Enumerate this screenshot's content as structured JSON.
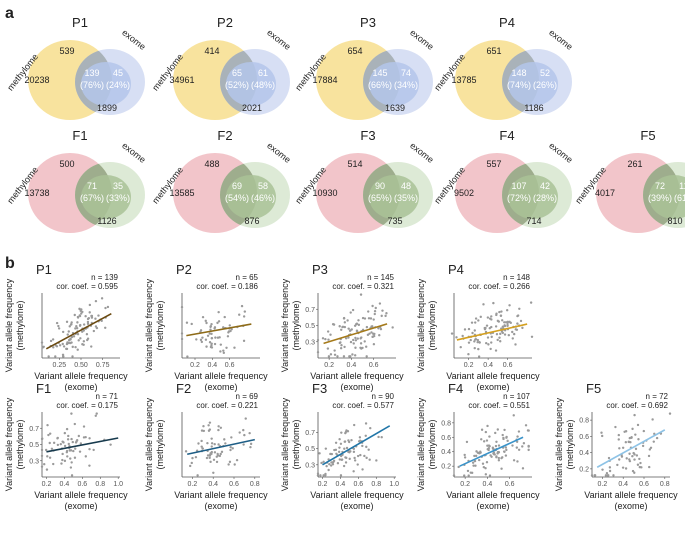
{
  "panel_a": {
    "label": "a",
    "set_left": "methylome",
    "set_right": "exome",
    "venns": [
      {
        "title": "P1",
        "left_only": "20238",
        "top_only": "539",
        "ov_a": "139",
        "ov_a_pct": "(76%)",
        "ov_b": "45",
        "ov_b_pct": "(24%)",
        "right_only": "1899",
        "left_color": "#f5d97e",
        "right_color": "#c9d4f0",
        "overlap_color": "#9aa6ad",
        "inner_color": "#b4c6ea"
      },
      {
        "title": "P2",
        "left_only": "34961",
        "top_only": "414",
        "ov_a": "65",
        "ov_a_pct": "(52%)",
        "ov_b": "61",
        "ov_b_pct": "(48%)",
        "right_only": "2021",
        "left_color": "#f5d97e",
        "right_color": "#c9d4f0",
        "overlap_color": "#9aa6ad",
        "inner_color": "#b4c6ea"
      },
      {
        "title": "P3",
        "left_only": "17884",
        "top_only": "654",
        "ov_a": "145",
        "ov_a_pct": "(66%)",
        "ov_b": "74",
        "ov_b_pct": "(34%)",
        "right_only": "1639",
        "left_color": "#f5d97e",
        "right_color": "#c9d4f0",
        "overlap_color": "#9aa6ad",
        "inner_color": "#b4c6ea"
      },
      {
        "title": "P4",
        "left_only": "13785",
        "top_only": "651",
        "ov_a": "148",
        "ov_a_pct": "(74%)",
        "ov_b": "52",
        "ov_b_pct": "(26%)",
        "right_only": "1186",
        "left_color": "#f5d97e",
        "right_color": "#c9d4f0",
        "overlap_color": "#9aa6ad",
        "inner_color": "#b4c6ea"
      },
      {
        "title": "F1",
        "left_only": "13738",
        "top_only": "500",
        "ov_a": "71",
        "ov_a_pct": "(67%)",
        "ov_b": "35",
        "ov_b_pct": "(33%)",
        "right_only": "1126",
        "left_color": "#eeb2b8",
        "right_color": "#d1e3c8",
        "overlap_color": "#8a9e78",
        "inner_color": "#a9c296"
      },
      {
        "title": "F2",
        "left_only": "13585",
        "top_only": "488",
        "ov_a": "69",
        "ov_a_pct": "(54%)",
        "ov_b": "58",
        "ov_b_pct": "(46%)",
        "right_only": "876",
        "left_color": "#eeb2b8",
        "right_color": "#d1e3c8",
        "overlap_color": "#8a9e78",
        "inner_color": "#a9c296"
      },
      {
        "title": "F3",
        "left_only": "10930",
        "top_only": "514",
        "ov_a": "90",
        "ov_a_pct": "(65%)",
        "ov_b": "48",
        "ov_b_pct": "(35%)",
        "right_only": "735",
        "left_color": "#eeb2b8",
        "right_color": "#d1e3c8",
        "overlap_color": "#8a9e78",
        "inner_color": "#a9c296"
      },
      {
        "title": "F4",
        "left_only": "9502",
        "top_only": "557",
        "ov_a": "107",
        "ov_a_pct": "(72%)",
        "ov_b": "42",
        "ov_b_pct": "(28%)",
        "right_only": "714",
        "left_color": "#eeb2b8",
        "right_color": "#d1e3c8",
        "overlap_color": "#8a9e78",
        "inner_color": "#a9c296"
      },
      {
        "title": "F5",
        "left_only": "4017",
        "top_only": "261",
        "ov_a": "72",
        "ov_a_pct": "(39%)",
        "ov_b": "111",
        "ov_b_pct": "(61%)",
        "right_only": "810",
        "left_color": "#eeb2b8",
        "right_color": "#d1e3c8",
        "overlap_color": "#8a9e78",
        "inner_color": "#a9c296"
      }
    ]
  },
  "panel_b": {
    "label": "b",
    "ylabel_line1": "Variant allele frequency",
    "ylabel_line2": "(methylome)",
    "xlabel_line1": "Variant allele frequency",
    "xlabel_line2": "(exome)",
    "point_color": "#9a9a9a"
  },
  "chart_data": [
    {
      "type": "scatter",
      "title": "P1",
      "n_text": "n = 139",
      "cor_text": "cor. coef. = 0.595",
      "n": 139,
      "r": 0.595,
      "xlim": [
        0.05,
        0.95
      ],
      "ylim": [
        0.1,
        0.95
      ],
      "xticks": [
        "0.25",
        "0.50",
        "0.75"
      ],
      "xtick_vals": [
        0.25,
        0.5,
        0.75
      ],
      "yticks": [],
      "ytick_vals": [],
      "line_color": "#6b4a10",
      "fit": [
        [
          0.1,
          0.22
        ],
        [
          0.85,
          0.68
        ]
      ],
      "xlabel": "Variant allele frequency (exome)",
      "ylabel": "Variant allele frequency (methylome)",
      "seed": 11
    },
    {
      "type": "scatter",
      "title": "P2",
      "n_text": "n = 65",
      "cor_text": "cor. coef. = 0.186",
      "n": 65,
      "r": 0.186,
      "xlim": [
        0.05,
        0.95
      ],
      "ylim": [
        0.05,
        0.95
      ],
      "xticks": [
        "0.2",
        "0.4",
        "0.6"
      ],
      "xtick_vals": [
        0.2,
        0.4,
        0.6
      ],
      "yticks": [],
      "ytick_vals": [],
      "line_color": "#8e6b18",
      "fit": [
        [
          0.1,
          0.36
        ],
        [
          0.85,
          0.52
        ]
      ],
      "xlabel": "Variant allele frequency (exome)",
      "ylabel": "Variant allele frequency (methylome)",
      "seed": 23
    },
    {
      "type": "scatter",
      "title": "P3",
      "n_text": "n = 145",
      "cor_text": "cor. coef. = 0.321",
      "n": 145,
      "r": 0.321,
      "xlim": [
        0.1,
        0.8
      ],
      "ylim": [
        0.1,
        0.9
      ],
      "xticks": [
        "0.2",
        "0.4",
        "0.6"
      ],
      "xtick_vals": [
        0.2,
        0.4,
        0.6
      ],
      "yticks": [
        "0.3",
        "0.5",
        "0.7"
      ],
      "ytick_vals": [
        0.3,
        0.5,
        0.7
      ],
      "line_color": "#a57a1a",
      "fit": [
        [
          0.15,
          0.28
        ],
        [
          0.72,
          0.52
        ]
      ],
      "xlabel": "Variant allele frequency (exome)",
      "ylabel": "Variant allele frequency (methylome)",
      "seed": 37
    },
    {
      "type": "scatter",
      "title": "P4",
      "n_text": "n = 148",
      "cor_text": "cor. coef. = 0.266",
      "n": 148,
      "r": 0.266,
      "xlim": [
        0.05,
        0.85
      ],
      "ylim": [
        0.05,
        0.95
      ],
      "xticks": [
        "0.2",
        "0.4",
        "0.6"
      ],
      "xtick_vals": [
        0.2,
        0.4,
        0.6
      ],
      "yticks": [],
      "ytick_vals": [],
      "line_color": "#d4a020",
      "fit": [
        [
          0.08,
          0.3
        ],
        [
          0.8,
          0.52
        ]
      ],
      "xlabel": "Variant allele frequency (exome)",
      "ylabel": "Variant allele frequency (methylome)",
      "seed": 41
    },
    {
      "type": "scatter",
      "title": "F1",
      "n_text": "n = 71",
      "cor_text": "cor. coef. = 0.175",
      "n": 71,
      "r": 0.175,
      "xlim": [
        0.15,
        1.02
      ],
      "ylim": [
        0.1,
        0.9
      ],
      "xticks": [
        "0.2",
        "0.4",
        "0.6",
        "0.8",
        "1.0"
      ],
      "xtick_vals": [
        0.2,
        0.4,
        0.6,
        0.8,
        1.0
      ],
      "yticks": [
        "0.3",
        "0.5",
        "0.7"
      ],
      "ytick_vals": [
        0.3,
        0.5,
        0.7
      ],
      "line_color": "#173a4d",
      "fit": [
        [
          0.2,
          0.41
        ],
        [
          1.0,
          0.58
        ]
      ],
      "xlabel": "Variant allele frequency (exome)",
      "ylabel": "Variant allele frequency (methylome)",
      "seed": 53
    },
    {
      "type": "scatter",
      "title": "F2",
      "n_text": "n = 69",
      "cor_text": "cor. coef. = 0.221",
      "n": 69,
      "r": 0.221,
      "xlim": [
        0.1,
        0.85
      ],
      "ylim": [
        0.1,
        0.9
      ],
      "xticks": [
        "0.2",
        "0.4",
        "0.6",
        "0.8"
      ],
      "xtick_vals": [
        0.2,
        0.4,
        0.6,
        0.8
      ],
      "yticks": [],
      "ytick_vals": [],
      "line_color": "#1e5e86",
      "fit": [
        [
          0.15,
          0.38
        ],
        [
          0.8,
          0.56
        ]
      ],
      "xlabel": "Variant allele frequency (exome)",
      "ylabel": "Variant allele frequency (methylome)",
      "seed": 67
    },
    {
      "type": "scatter",
      "title": "F3",
      "n_text": "n = 90",
      "cor_text": "cor. coef. = 0.577",
      "n": 90,
      "r": 0.577,
      "xlim": [
        0.15,
        1.02
      ],
      "ylim": [
        0.15,
        0.95
      ],
      "xticks": [
        "0.2",
        "0.4",
        "0.6",
        "0.8",
        "1.0"
      ],
      "xtick_vals": [
        0.2,
        0.4,
        0.6,
        0.8,
        1.0
      ],
      "yticks": [
        "0.3",
        "0.5",
        "0.7"
      ],
      "ytick_vals": [
        0.3,
        0.5,
        0.7
      ],
      "line_color": "#2176a8",
      "fit": [
        [
          0.2,
          0.3
        ],
        [
          0.95,
          0.78
        ]
      ],
      "xlabel": "Variant allele frequency (exome)",
      "ylabel": "Variant allele frequency (methylome)",
      "seed": 71
    },
    {
      "type": "scatter",
      "title": "F4",
      "n_text": "n = 107",
      "cor_text": "cor. coef. = 0.551",
      "n": 107,
      "r": 0.551,
      "xlim": [
        0.1,
        0.8
      ],
      "ylim": [
        0.05,
        0.95
      ],
      "xticks": [
        "0.2",
        "0.4",
        "0.6"
      ],
      "xtick_vals": [
        0.2,
        0.4,
        0.6
      ],
      "yticks": [
        "0.2",
        "0.4",
        "0.6",
        "0.8"
      ],
      "ytick_vals": [
        0.2,
        0.4,
        0.6,
        0.8
      ],
      "line_color": "#3a93c9",
      "fit": [
        [
          0.15,
          0.2
        ],
        [
          0.72,
          0.6
        ]
      ],
      "xlabel": "Variant allele frequency (exome)",
      "ylabel": "Variant allele frequency (methylome)",
      "seed": 83
    },
    {
      "type": "scatter",
      "title": "F5",
      "n_text": "n = 72",
      "cor_text": "cor. coef. = 0.692",
      "n": 72,
      "r": 0.692,
      "xlim": [
        0.1,
        0.85
      ],
      "ylim": [
        0.1,
        0.9
      ],
      "xticks": [
        "0.2",
        "0.4",
        "0.6",
        "0.8"
      ],
      "xtick_vals": [
        0.2,
        0.4,
        0.6,
        0.8
      ],
      "yticks": [
        "0.2",
        "0.4",
        "0.6",
        "0.8"
      ],
      "ytick_vals": [
        0.2,
        0.4,
        0.6,
        0.8
      ],
      "line_color": "#8ec3e6",
      "fit": [
        [
          0.15,
          0.22
        ],
        [
          0.8,
          0.68
        ]
      ],
      "xlabel": "Variant allele frequency (exome)",
      "ylabel": "Variant allele frequency (methylome)",
      "seed": 97
    }
  ]
}
